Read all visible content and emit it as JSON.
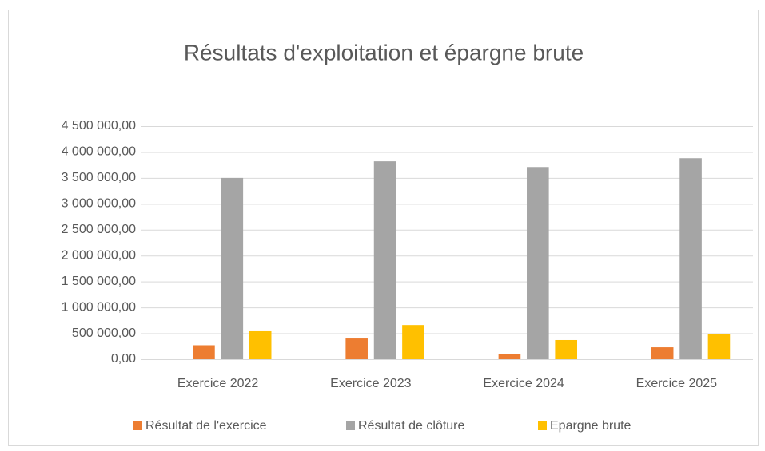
{
  "chart_data": {
    "type": "bar",
    "title": "Résultats d'exploitation et épargne brute",
    "categories": [
      "Exercice 2022",
      "Exercice 2023",
      "Exercice 2024",
      "Exercice 2025"
    ],
    "series": [
      {
        "name": "Résultat de l'exercice",
        "color": "#ED7D31",
        "values": [
          270000,
          400000,
          100000,
          230000
        ]
      },
      {
        "name": "Résultat de clôture",
        "color": "#A5A5A5",
        "values": [
          3500000,
          3820000,
          3710000,
          3880000
        ]
      },
      {
        "name": "Epargne brute",
        "color": "#FFC000",
        "values": [
          540000,
          660000,
          370000,
          480000
        ]
      }
    ],
    "ylim": [
      0,
      4500000
    ],
    "yticks": [
      {
        "value": 0,
        "label": "0,00"
      },
      {
        "value": 500000,
        "label": "500 000,00"
      },
      {
        "value": 1000000,
        "label": "1 000 000,00"
      },
      {
        "value": 1500000,
        "label": "1 500 000,00"
      },
      {
        "value": 2000000,
        "label": "2 000 000,00"
      },
      {
        "value": 2500000,
        "label": "2 500 000,00"
      },
      {
        "value": 3000000,
        "label": "3 000 000,00"
      },
      {
        "value": 3500000,
        "label": "3 500 000,00"
      },
      {
        "value": 4000000,
        "label": "4 000 000,00"
      },
      {
        "value": 4500000,
        "label": "4 500 000,00"
      }
    ],
    "grid": true,
    "legend": "bottom"
  }
}
